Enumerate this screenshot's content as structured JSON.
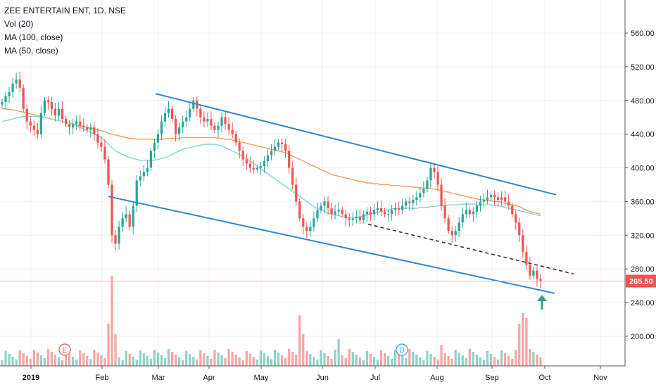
{
  "legend": {
    "symbol": "ZEE ENTERTAIN ENT, 1D, NSE",
    "volume": "Vol (20)",
    "ma100": "MA (100, close)",
    "ma50": "MA (50, close)"
  },
  "colors": {
    "up": "#26a69a",
    "down": "#ef5350",
    "vol_up": "#8fd1c9",
    "vol_down": "#f6a5a3",
    "ma100": "#f59c5b",
    "ma50": "#7fd6d6",
    "channel": "#2f86d6",
    "dashed": "#333333",
    "price_tag": "#ef5350",
    "arrow": "#2f9e8f"
  },
  "chart_data": {
    "type": "candlestick",
    "symbol": "ZEE ENTERTAIN ENT",
    "interval": "1D",
    "exchange": "NSE",
    "y_ticks": [
      200,
      240,
      280,
      320,
      360,
      400,
      440,
      480,
      520,
      560
    ],
    "y_tick_labels": [
      "200.00",
      "240.00",
      "280.00",
      "320.00",
      "360.00",
      "400.00",
      "440.00",
      "480.00",
      "520.00",
      "560.00"
    ],
    "ylim": [
      180,
      580
    ],
    "x_labels": [
      "2019",
      "Feb",
      "Mar",
      "Apr",
      "May",
      "Jun",
      "Jul",
      "Aug",
      "Sep",
      "Oct",
      "Nov"
    ],
    "last_price": 265.5,
    "last_price_label": "265.50",
    "series": [
      {
        "name": "price",
        "values": [
          478,
          485,
          490,
          500,
          505,
          495,
          470,
          455,
          450,
          445,
          440,
          465,
          480,
          478,
          470,
          462,
          470,
          458,
          452,
          448,
          452,
          455,
          450,
          448,
          445,
          448,
          440,
          430,
          425,
          410,
          380,
          320,
          310,
          330,
          340,
          345,
          330,
          355,
          385,
          390,
          395,
          400,
          420,
          430,
          440,
          455,
          465,
          470,
          458,
          440,
          448,
          455,
          460,
          470,
          480,
          470,
          460,
          455,
          458,
          450,
          445,
          450,
          460,
          452,
          445,
          440,
          430,
          420,
          410,
          405,
          400,
          398,
          400,
          402,
          408,
          415,
          420,
          425,
          430,
          428,
          420,
          400,
          380,
          360,
          340,
          330,
          325,
          330,
          340,
          350,
          355,
          360,
          352,
          345,
          348,
          350,
          345,
          340,
          338,
          340,
          342,
          338,
          345,
          348,
          345,
          350,
          352,
          348,
          345,
          345,
          350,
          352,
          350,
          355,
          360,
          358,
          362,
          365,
          370,
          375,
          385,
          400,
          395,
          380,
          355,
          340,
          325,
          320,
          325,
          335,
          345,
          350,
          345,
          348,
          355,
          360,
          362,
          365,
          368,
          365,
          362,
          365,
          360,
          355,
          345,
          335,
          320,
          300,
          285,
          272,
          278,
          268,
          265
        ]
      },
      {
        "name": "MA (100, close)",
        "values": [
          470,
          470,
          469,
          469,
          468,
          467,
          466,
          465,
          464,
          463,
          462,
          461,
          460,
          459,
          458,
          457,
          456,
          455,
          454,
          453,
          452,
          451,
          450,
          449,
          448,
          447,
          446,
          445,
          444,
          443,
          441,
          440,
          439,
          438,
          437,
          436,
          435,
          435,
          434,
          434,
          434,
          434,
          434,
          434,
          434,
          434,
          434,
          435,
          435,
          435,
          435,
          436,
          436,
          436,
          436,
          436,
          436,
          436,
          436,
          436,
          436,
          435,
          435,
          434,
          434,
          433,
          432,
          431,
          430,
          429,
          428,
          427,
          426,
          425,
          424,
          423,
          422,
          421,
          420,
          419,
          418,
          416,
          414,
          412,
          410,
          408,
          406,
          404,
          402,
          400,
          398,
          396,
          394,
          392,
          391,
          390,
          389,
          388,
          387,
          386,
          385,
          384,
          383,
          382,
          382,
          381,
          381,
          380,
          380,
          380,
          379,
          379,
          379,
          378,
          378,
          378,
          377,
          377,
          376,
          376,
          376,
          375,
          375,
          374,
          373,
          372,
          371,
          370,
          369,
          368,
          367,
          366,
          365,
          364,
          363,
          362,
          362,
          361,
          361,
          360,
          360,
          359,
          358,
          357,
          356,
          355,
          354,
          352,
          350,
          348,
          347,
          346,
          345
        ]
      },
      {
        "name": "MA (50, close)",
        "values": [
          455,
          456,
          457,
          458,
          459,
          460,
          461,
          461,
          461,
          461,
          461,
          460,
          460,
          459,
          458,
          457,
          456,
          455,
          454,
          453,
          452,
          450,
          448,
          446,
          444,
          442,
          440,
          438,
          436,
          432,
          428,
          424,
          420,
          418,
          416,
          414,
          412,
          411,
          410,
          409,
          409,
          409,
          409,
          409,
          410,
          411,
          412,
          414,
          416,
          418,
          420,
          422,
          423,
          424,
          425,
          426,
          427,
          428,
          428,
          428,
          428,
          427,
          426,
          424,
          422,
          420,
          418,
          416,
          414,
          411,
          408,
          405,
          402,
          399,
          396,
          393,
          390,
          387,
          384,
          381,
          378,
          375,
          372,
          369,
          366,
          363,
          360,
          357,
          354,
          352,
          350,
          348,
          346,
          345,
          344,
          343,
          342,
          341,
          341,
          341,
          341,
          342,
          343,
          344,
          345,
          346,
          347,
          348,
          349,
          350,
          351,
          352,
          352,
          352,
          352,
          352,
          352,
          352,
          353,
          353,
          353,
          354,
          354,
          355,
          355,
          355,
          356,
          356,
          356,
          356,
          357,
          357,
          357,
          357,
          356,
          356,
          356,
          356,
          356,
          355,
          355,
          354,
          353,
          352,
          351,
          350,
          349,
          348,
          347,
          346,
          345,
          344,
          343
        ]
      }
    ],
    "annotations": [
      {
        "type": "channel-upper",
        "from": {
          "date": "Mar",
          "price": 488
        },
        "to": {
          "date": "Oct+",
          "price": 368
        }
      },
      {
        "type": "channel-lower",
        "from": {
          "date": "Feb",
          "price": 366
        },
        "to": {
          "date": "Oct",
          "price": 250
        }
      },
      {
        "type": "dashed-trend",
        "from": {
          "date": "Jul",
          "price": 333
        },
        "to": {
          "date": "Oct+",
          "price": 274
        }
      },
      {
        "type": "event",
        "label": "E"
      },
      {
        "type": "event",
        "label": "D"
      },
      {
        "type": "arrow-up"
      }
    ]
  }
}
